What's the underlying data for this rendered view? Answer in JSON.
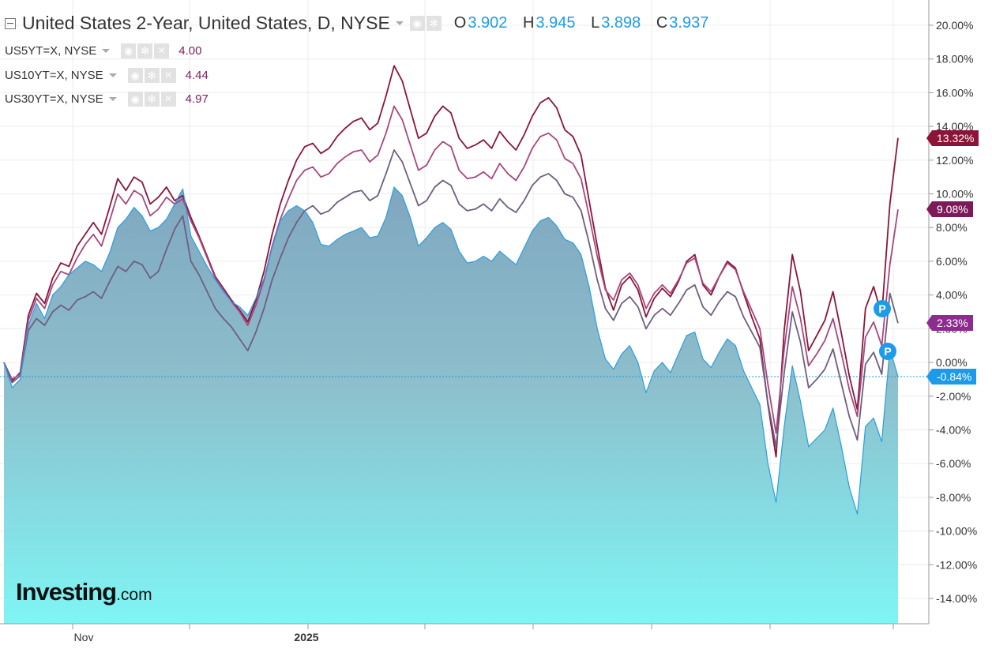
{
  "header": {
    "title": "United States 2-Year, United States, D, NYSE",
    "ohlc": [
      {
        "key": "O",
        "value": "3.902"
      },
      {
        "key": "H",
        "value": "3.945"
      },
      {
        "key": "L",
        "value": "3.898"
      },
      {
        "key": "C",
        "value": "3.937"
      }
    ]
  },
  "overlays": [
    {
      "label": "US5YT=X, NYSE",
      "value": "4.00"
    },
    {
      "label": "US10YT=X, NYSE",
      "value": "4.44"
    },
    {
      "label": "US30YT=X, NYSE",
      "value": "4.97"
    }
  ],
  "badges": [
    {
      "text": "13.32%",
      "y": 13.32,
      "color": "#8a1538"
    },
    {
      "text": "9.08%",
      "y": 9.08,
      "color": "#7d1a5a"
    },
    {
      "text": "2.33%",
      "y": 2.33,
      "color": "#8e2b8e"
    },
    {
      "text": "-0.84%",
      "y": -0.84,
      "color": "#1e9be8"
    }
  ],
  "markers": {
    "p1": "P",
    "p2": "P"
  },
  "logo": {
    "main": "Investing",
    "suffix": ".com"
  },
  "chart_data": {
    "type": "area",
    "y_unit": "%",
    "ylim": [
      -15.5,
      21.5
    ],
    "yticks": [
      20,
      18,
      16,
      14,
      12,
      10,
      8,
      6,
      4,
      2,
      0,
      -2,
      -4,
      -6,
      -8,
      -10,
      -12,
      -14
    ],
    "ytick_labels": [
      "20.00%",
      "18.00%",
      "16.00%",
      "14.00%",
      "12.00%",
      "10.00%",
      "8.00%",
      "6.00%",
      "4.00%",
      "2.00%",
      "0.00%",
      "-2.00%",
      "-4.00%",
      "-6.00%",
      "-8.00%",
      "-10.00%",
      "-12.00%",
      "-14.00%"
    ],
    "x_ticks": [
      {
        "label": "Nov",
        "bold": false
      },
      {
        "label": "2025",
        "bold": true
      }
    ],
    "x_count": 111,
    "series": [
      {
        "name": "United States 2-Year",
        "color": "#2a9ee0",
        "fill": true,
        "values": [
          0.0,
          -1.5,
          -1.0,
          2.2,
          3.5,
          2.6,
          4.0,
          4.5,
          5.2,
          5.6,
          6.0,
          5.8,
          5.4,
          6.5,
          8.0,
          8.5,
          9.2,
          8.7,
          7.8,
          8.0,
          8.5,
          9.4,
          10.3,
          7.5,
          6.6,
          5.7,
          4.9,
          4.2,
          3.6,
          3.3,
          2.8,
          3.8,
          5.0,
          6.8,
          8.4,
          9.0,
          9.3,
          9.0,
          8.3,
          7.0,
          6.9,
          7.3,
          7.6,
          7.8,
          8.0,
          7.4,
          7.5,
          8.6,
          10.4,
          9.9,
          8.6,
          6.9,
          7.4,
          8.0,
          8.3,
          7.9,
          6.6,
          5.9,
          6.0,
          6.3,
          6.0,
          6.6,
          6.2,
          5.8,
          6.8,
          7.8,
          8.4,
          8.6,
          8.1,
          7.3,
          7.1,
          6.4,
          4.5,
          2.0,
          0.2,
          -0.4,
          0.5,
          1.0,
          0.0,
          -1.8,
          -0.5,
          0.0,
          -0.6,
          0.5,
          1.6,
          1.8,
          0.2,
          -0.3,
          0.6,
          1.4,
          1.0,
          -0.5,
          -1.5,
          -2.5,
          -6.0,
          -8.3,
          -3.8,
          -0.2,
          -2.3,
          -5.0,
          -4.5,
          -4.0,
          -2.7,
          -4.9,
          -7.4,
          -9.0,
          -3.8,
          -3.3,
          -4.7,
          0.8,
          -0.84
        ]
      },
      {
        "name": "US5YT=X",
        "color": "#6f5e80",
        "fill": false,
        "values": [
          0.0,
          -1.2,
          -0.8,
          1.9,
          2.6,
          2.2,
          3.0,
          3.4,
          3.1,
          3.7,
          3.9,
          4.2,
          3.8,
          4.8,
          5.7,
          5.4,
          6.0,
          5.8,
          5.0,
          5.4,
          6.7,
          7.9,
          8.7,
          6.0,
          5.2,
          4.2,
          3.2,
          2.6,
          2.1,
          1.4,
          0.7,
          1.8,
          3.2,
          4.9,
          6.2,
          7.4,
          8.3,
          9.0,
          9.3,
          8.8,
          9.0,
          9.5,
          9.8,
          10.1,
          10.2,
          9.6,
          9.9,
          11.2,
          12.6,
          11.9,
          10.6,
          9.3,
          9.6,
          10.4,
          10.8,
          10.5,
          9.4,
          9.0,
          9.1,
          9.4,
          9.0,
          9.7,
          9.2,
          8.9,
          9.6,
          10.5,
          11.0,
          11.2,
          10.8,
          10.0,
          9.8,
          9.0,
          7.1,
          4.9,
          3.2,
          2.5,
          3.5,
          3.9,
          3.3,
          2.0,
          2.8,
          3.2,
          2.8,
          3.5,
          4.3,
          4.6,
          3.3,
          2.8,
          3.6,
          4.2,
          3.9,
          2.7,
          1.8,
          0.9,
          -2.4,
          -5.0,
          -0.6,
          3.0,
          1.2,
          -1.5,
          -1.0,
          -0.4,
          0.8,
          -1.2,
          -3.2,
          -4.6,
          -0.1,
          0.6,
          -0.7,
          4.1,
          2.33
        ]
      },
      {
        "name": "US10YT=X",
        "color": "#a7477f",
        "fill": false,
        "values": [
          0.0,
          -1.0,
          -0.7,
          2.5,
          3.8,
          3.2,
          4.6,
          5.4,
          5.2,
          6.2,
          7.0,
          7.6,
          6.9,
          8.4,
          10.0,
          9.4,
          10.2,
          9.9,
          8.7,
          9.1,
          9.8,
          9.4,
          9.7,
          8.4,
          7.4,
          6.2,
          5.0,
          4.3,
          3.6,
          3.0,
          2.2,
          3.4,
          4.9,
          6.9,
          8.5,
          9.7,
          10.8,
          11.4,
          11.6,
          11.0,
          11.2,
          11.8,
          12.2,
          12.5,
          12.6,
          11.9,
          12.3,
          13.6,
          15.2,
          14.4,
          12.9,
          11.4,
          11.7,
          12.6,
          13.1,
          12.8,
          11.4,
          10.9,
          11.0,
          11.3,
          10.9,
          11.8,
          11.2,
          10.8,
          11.6,
          12.7,
          13.4,
          13.6,
          13.2,
          12.1,
          11.8,
          10.9,
          8.7,
          6.3,
          4.3,
          3.7,
          4.9,
          5.3,
          4.6,
          3.2,
          4.1,
          4.6,
          4.1,
          4.9,
          5.9,
          6.2,
          4.7,
          4.2,
          5.1,
          5.9,
          5.5,
          4.2,
          3.1,
          2.0,
          -1.3,
          -4.2,
          0.8,
          4.5,
          2.6,
          -0.2,
          0.5,
          1.3,
          2.6,
          0.6,
          -1.6,
          -3.2,
          1.5,
          2.4,
          1.0,
          5.8,
          9.08
        ]
      },
      {
        "name": "US30YT=X",
        "color": "#8a1538",
        "fill": false,
        "values": [
          0.0,
          -1.1,
          -0.6,
          2.8,
          4.1,
          3.5,
          5.0,
          5.9,
          5.7,
          6.9,
          7.6,
          8.3,
          7.6,
          9.2,
          10.9,
          10.2,
          11.0,
          10.7,
          9.4,
          9.8,
          10.4,
          9.6,
          9.9,
          8.6,
          7.5,
          6.3,
          5.1,
          4.4,
          3.7,
          3.1,
          2.4,
          3.7,
          5.4,
          7.6,
          9.4,
          10.8,
          12.0,
          12.8,
          13.0,
          12.4,
          12.7,
          13.4,
          13.9,
          14.3,
          14.5,
          13.8,
          14.2,
          15.8,
          17.6,
          16.7,
          15.0,
          13.3,
          13.6,
          14.6,
          15.2,
          14.8,
          13.3,
          12.7,
          12.9,
          13.2,
          12.7,
          13.7,
          13.1,
          12.6,
          13.5,
          14.6,
          15.4,
          15.7,
          15.1,
          13.8,
          13.4,
          12.3,
          9.6,
          6.9,
          4.4,
          3.1,
          4.6,
          5.1,
          4.3,
          2.7,
          3.8,
          4.4,
          3.9,
          4.8,
          6.0,
          6.4,
          4.6,
          4.0,
          5.1,
          6.0,
          5.6,
          4.1,
          2.7,
          1.4,
          -2.5,
          -5.6,
          1.9,
          6.4,
          4.2,
          0.7,
          1.6,
          2.5,
          4.2,
          1.8,
          -0.8,
          -2.8,
          3.2,
          4.5,
          2.8,
          9.4,
          13.32
        ]
      }
    ]
  }
}
